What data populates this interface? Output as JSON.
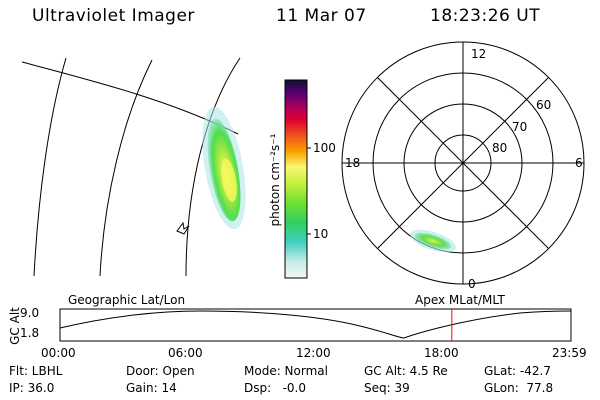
{
  "header": {
    "instrument": "Ultraviolet Imager",
    "date": "11 Mar 07",
    "time": "18:23:26 UT"
  },
  "colorbar": {
    "unit_label": "photon cm⁻²s⁻¹",
    "ticks": [
      "100",
      "10"
    ]
  },
  "polar_plot": {
    "mlt_labels": [
      "12",
      "18",
      "6",
      "0"
    ],
    "lat_labels": [
      "60",
      "70",
      "80"
    ]
  },
  "timeline": {
    "ylabel": "GC Alt",
    "yticks": [
      "9.0",
      "1.8"
    ],
    "left_title": "Geographic Lat/Lon",
    "right_title": "Apex MLat/MLT",
    "xticks": [
      "00:00",
      "06:00",
      "12:00",
      "18:00",
      "23:59"
    ],
    "marker_time_hours": 18.39,
    "marker_color": "#ff0000"
  },
  "status": {
    "filter": "Flt: LBHL",
    "ip": "IP: 36.0",
    "door": "Door: Open",
    "gain": "Gain: 14",
    "mode": "Mode: Normal",
    "dsp": "Dsp:   -0.0",
    "gc_alt": "GC Alt: 4.5 Re",
    "seq": "Seq: 39",
    "glat": "GLat: -42.7",
    "glon": "GLon:  77.8"
  }
}
